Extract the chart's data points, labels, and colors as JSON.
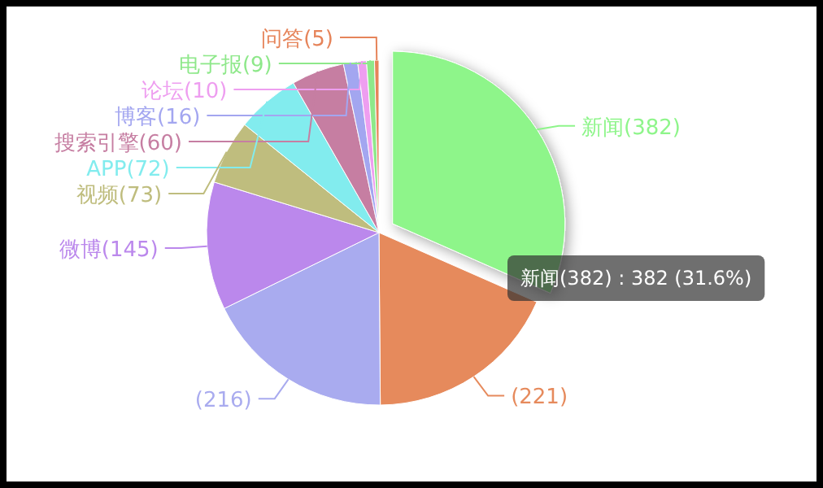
{
  "chart_data": {
    "type": "pie",
    "categories": [
      "新闻",
      null,
      null,
      "微博",
      "视频",
      "APP",
      "搜索引擎",
      "博客",
      "论坛",
      "电子报",
      "问答"
    ],
    "values": [
      382,
      221,
      216,
      145,
      73,
      72,
      60,
      16,
      10,
      9,
      5
    ],
    "colors": [
      "#8ef58a",
      "#e68a5c",
      "#a9abef",
      "#bb88ec",
      "#bfbd7e",
      "#82ecee",
      "#c67ea2",
      "#a3a6f0",
      "#ee9ef0",
      "#8ee88a",
      "#e6845a"
    ],
    "value_labels": [
      "(382)",
      "(221)",
      "(216)",
      "(145)",
      "(73)",
      "(72)",
      "(60)",
      "(16)",
      "(10)",
      "(9)",
      "(5)"
    ],
    "annotations": [
      {
        "text": "新闻(382) : 382 (31.6%)",
        "x": "新闻"
      }
    ]
  }
}
